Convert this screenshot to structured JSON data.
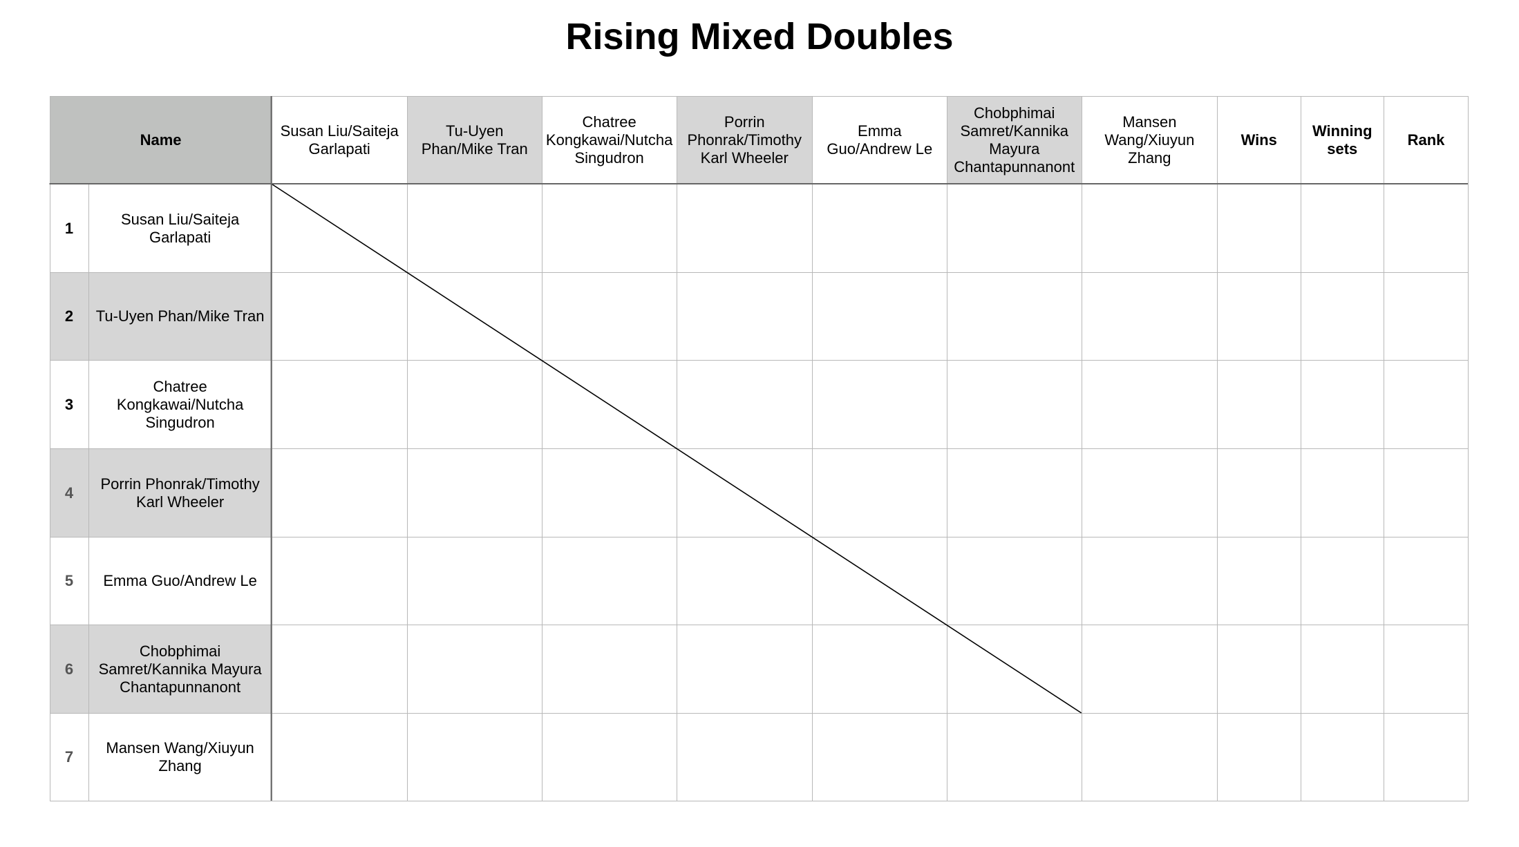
{
  "title": "Rising Mixed Doubles",
  "table": {
    "header": [
      "Name",
      "Susan Liu/Saiteja Garlapati",
      "Tu-Uyen Phan/Mike Tran",
      "Chatree Kongkawai/Nutcha Singudron",
      "Porrin Phonrak/Timothy Karl Wheeler",
      "Emma Guo/Andrew Le",
      "Chobphimai Samret/Kannika Mayura Chantapunnanont",
      "Mansen Wang/Xiuyun Zhang",
      "Wins",
      "Winning sets",
      "Rank"
    ],
    "rows": [
      {
        "index": "1",
        "name": "Susan Liu/Saiteja Garlapati"
      },
      {
        "index": "2",
        "name": "Tu-Uyen Phan/Mike Tran"
      },
      {
        "index": "3",
        "name": "Chatree Kongkawai/Nutcha Singudron"
      },
      {
        "index": "4",
        "name": "Porrin Phonrak/Timothy Karl Wheeler"
      },
      {
        "index": "5",
        "name": "Emma Guo/Andrew Le"
      },
      {
        "index": "6",
        "name": "Chobphimai Samret/Kannika Mayura Chantapunnanont"
      },
      {
        "index": "7",
        "name": "Mansen Wang/Xiuyun Zhang"
      }
    ]
  }
}
